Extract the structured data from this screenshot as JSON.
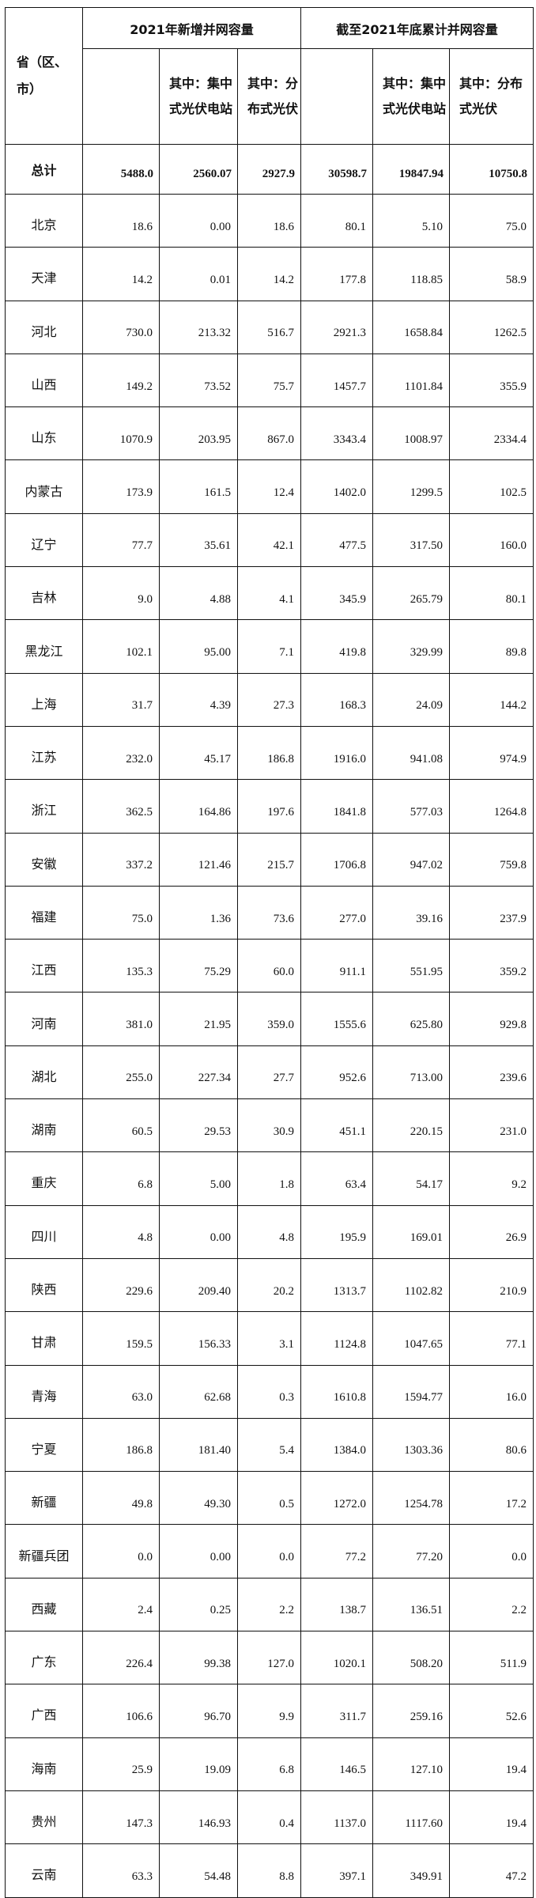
{
  "header": {
    "province": "省（区、市）",
    "group_new": "2021年新增并网容量",
    "group_cum": "截至2021年底累计并网容量",
    "new_central": "其中：集中式光伏电站",
    "new_distributed": "其中：分布式光伏",
    "cum_central": "其中：集中式光伏电站",
    "cum_distributed": "其中：分布式光伏"
  },
  "total": {
    "name": "总计",
    "values": [
      "5488.0",
      "2560.07",
      "2927.9",
      "30598.7",
      "19847.94",
      "10750.8"
    ]
  },
  "rows": [
    {
      "name": "北京",
      "values": [
        "18.6",
        "0.00",
        "18.6",
        "80.1",
        "5.10",
        "75.0"
      ]
    },
    {
      "name": "天津",
      "values": [
        "14.2",
        "0.01",
        "14.2",
        "177.8",
        "118.85",
        "58.9"
      ]
    },
    {
      "name": "河北",
      "values": [
        "730.0",
        "213.32",
        "516.7",
        "2921.3",
        "1658.84",
        "1262.5"
      ]
    },
    {
      "name": "山西",
      "values": [
        "149.2",
        "73.52",
        "75.7",
        "1457.7",
        "1101.84",
        "355.9"
      ]
    },
    {
      "name": "山东",
      "values": [
        "1070.9",
        "203.95",
        "867.0",
        "3343.4",
        "1008.97",
        "2334.4"
      ]
    },
    {
      "name": "内蒙古",
      "values": [
        "173.9",
        "161.5",
        "12.4",
        "1402.0",
        "1299.5",
        "102.5"
      ]
    },
    {
      "name": "辽宁",
      "values": [
        "77.7",
        "35.61",
        "42.1",
        "477.5",
        "317.50",
        "160.0"
      ]
    },
    {
      "name": "吉林",
      "values": [
        "9.0",
        "4.88",
        "4.1",
        "345.9",
        "265.79",
        "80.1"
      ]
    },
    {
      "name": "黑龙江",
      "values": [
        "102.1",
        "95.00",
        "7.1",
        "419.8",
        "329.99",
        "89.8"
      ]
    },
    {
      "name": "上海",
      "values": [
        "31.7",
        "4.39",
        "27.3",
        "168.3",
        "24.09",
        "144.2"
      ]
    },
    {
      "name": "江苏",
      "values": [
        "232.0",
        "45.17",
        "186.8",
        "1916.0",
        "941.08",
        "974.9"
      ]
    },
    {
      "name": "浙江",
      "values": [
        "362.5",
        "164.86",
        "197.6",
        "1841.8",
        "577.03",
        "1264.8"
      ]
    },
    {
      "name": "安徽",
      "values": [
        "337.2",
        "121.46",
        "215.7",
        "1706.8",
        "947.02",
        "759.8"
      ]
    },
    {
      "name": "福建",
      "values": [
        "75.0",
        "1.36",
        "73.6",
        "277.0",
        "39.16",
        "237.9"
      ]
    },
    {
      "name": "江西",
      "values": [
        "135.3",
        "75.29",
        "60.0",
        "911.1",
        "551.95",
        "359.2"
      ]
    },
    {
      "name": "河南",
      "values": [
        "381.0",
        "21.95",
        "359.0",
        "1555.6",
        "625.80",
        "929.8"
      ]
    },
    {
      "name": "湖北",
      "values": [
        "255.0",
        "227.34",
        "27.7",
        "952.6",
        "713.00",
        "239.6"
      ]
    },
    {
      "name": "湖南",
      "values": [
        "60.5",
        "29.53",
        "30.9",
        "451.1",
        "220.15",
        "231.0"
      ]
    },
    {
      "name": "重庆",
      "values": [
        "6.8",
        "5.00",
        "1.8",
        "63.4",
        "54.17",
        "9.2"
      ]
    },
    {
      "name": "四川",
      "values": [
        "4.8",
        "0.00",
        "4.8",
        "195.9",
        "169.01",
        "26.9"
      ]
    },
    {
      "name": "陕西",
      "values": [
        "229.6",
        "209.40",
        "20.2",
        "1313.7",
        "1102.82",
        "210.9"
      ]
    },
    {
      "name": "甘肃",
      "values": [
        "159.5",
        "156.33",
        "3.1",
        "1124.8",
        "1047.65",
        "77.1"
      ]
    },
    {
      "name": "青海",
      "values": [
        "63.0",
        "62.68",
        "0.3",
        "1610.8",
        "1594.77",
        "16.0"
      ]
    },
    {
      "name": "宁夏",
      "values": [
        "186.8",
        "181.40",
        "5.4",
        "1384.0",
        "1303.36",
        "80.6"
      ]
    },
    {
      "name": "新疆",
      "values": [
        "49.8",
        "49.30",
        "0.5",
        "1272.0",
        "1254.78",
        "17.2"
      ]
    },
    {
      "name": "新疆兵团",
      "values": [
        "0.0",
        "0.00",
        "0.0",
        "77.2",
        "77.20",
        "0.0"
      ]
    },
    {
      "name": "西藏",
      "values": [
        "2.4",
        "0.25",
        "2.2",
        "138.7",
        "136.51",
        "2.2"
      ]
    },
    {
      "name": "广东",
      "values": [
        "226.4",
        "99.38",
        "127.0",
        "1020.1",
        "508.20",
        "511.9"
      ]
    },
    {
      "name": "广西",
      "values": [
        "106.6",
        "96.70",
        "9.9",
        "311.7",
        "259.16",
        "52.6"
      ]
    },
    {
      "name": "海南",
      "values": [
        "25.9",
        "19.09",
        "6.8",
        "146.5",
        "127.10",
        "19.4"
      ]
    },
    {
      "name": "贵州",
      "values": [
        "147.3",
        "146.93",
        "0.4",
        "1137.0",
        "1117.60",
        "19.4"
      ]
    },
    {
      "name": "云南",
      "values": [
        "63.3",
        "54.48",
        "8.8",
        "397.1",
        "349.91",
        "47.2"
      ]
    }
  ]
}
